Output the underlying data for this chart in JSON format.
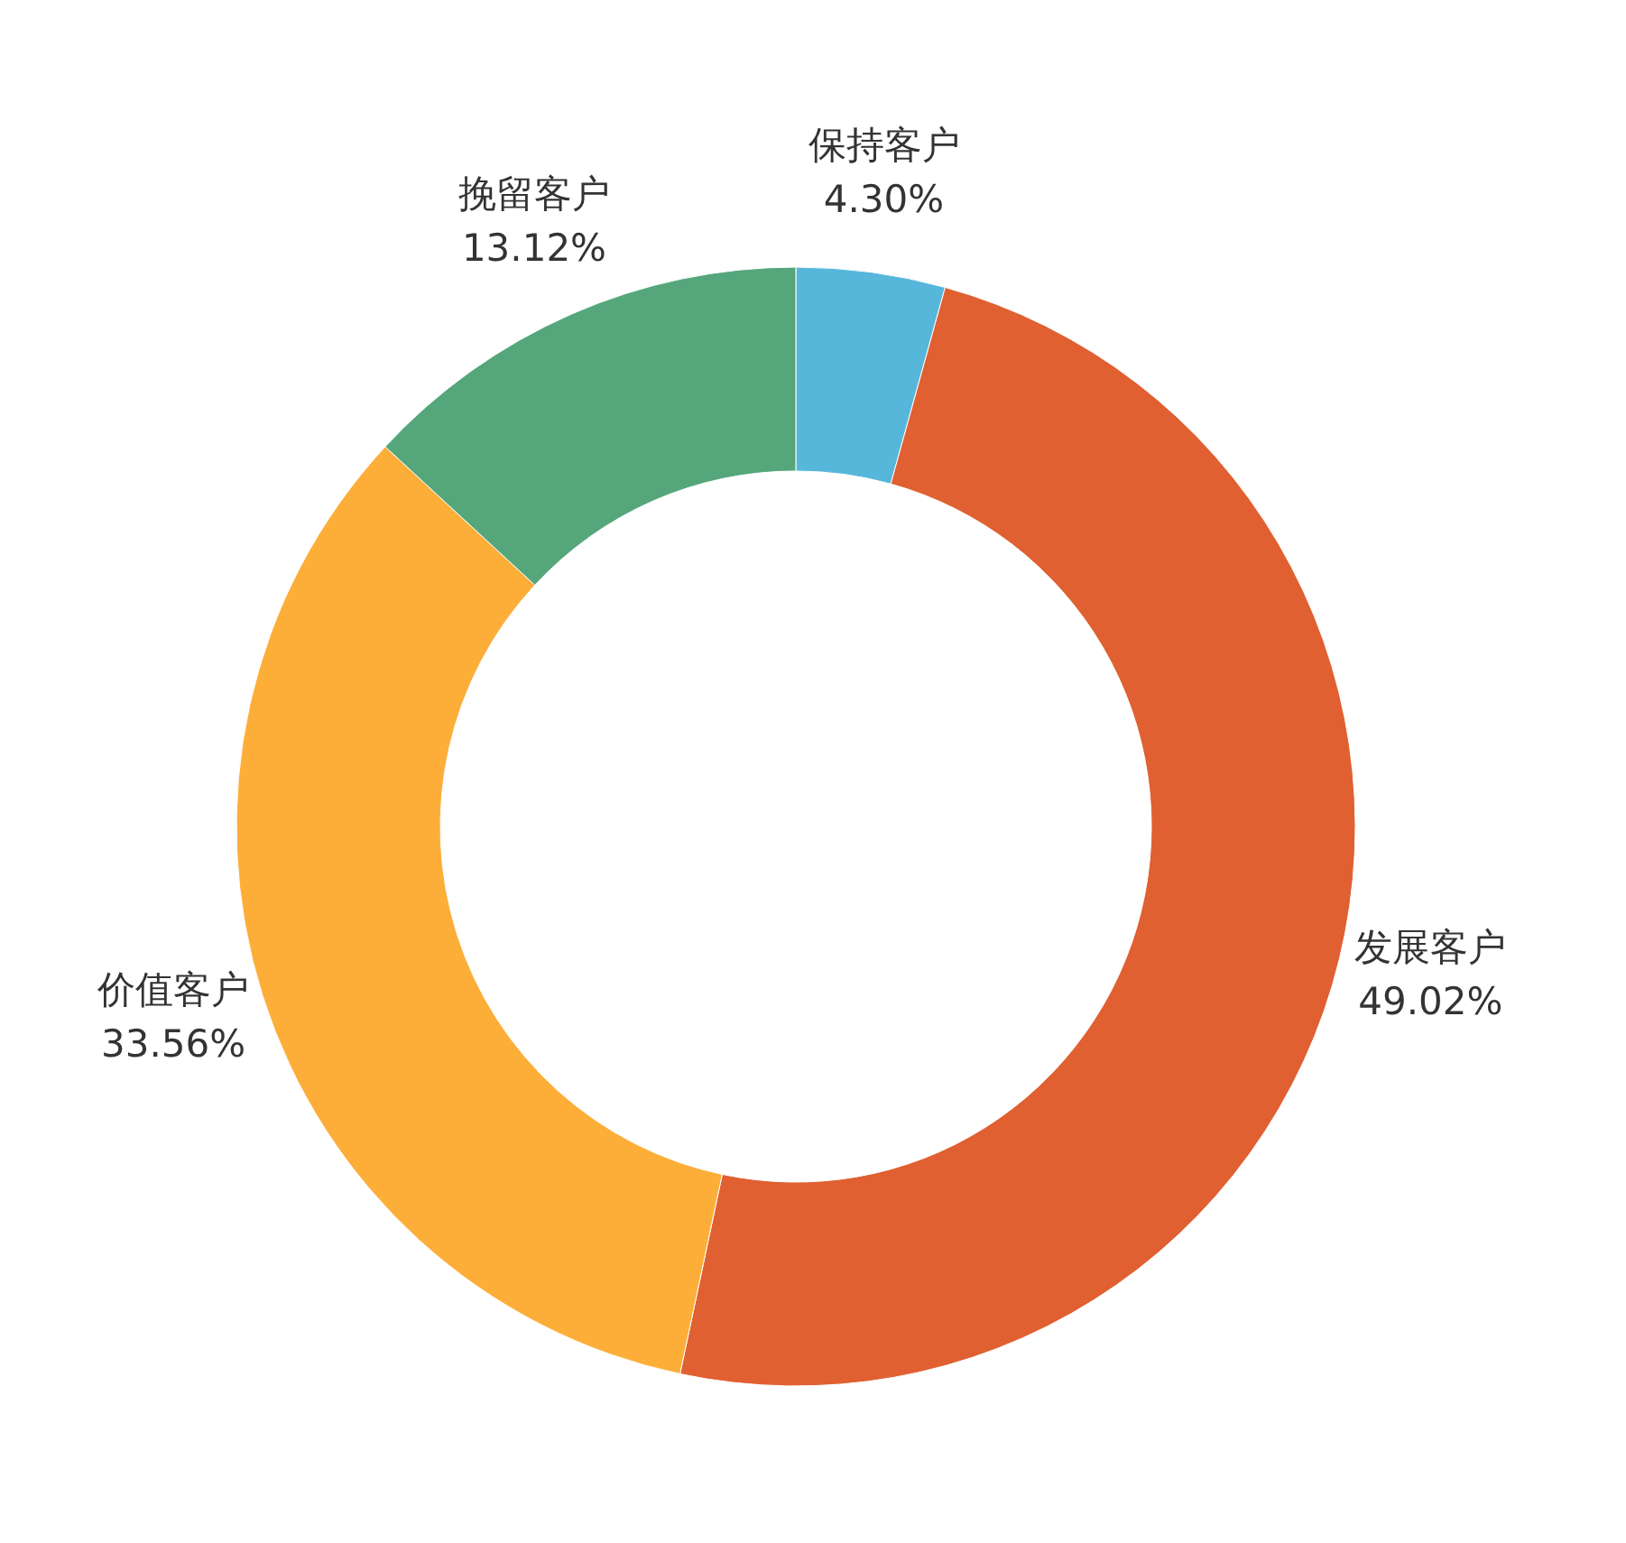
{
  "chart_data": {
    "type": "donut",
    "categories": [
      "保持客户",
      "发展客户",
      "价值客户",
      "挽留客户"
    ],
    "values": [
      4.3,
      49.02,
      33.56,
      13.12
    ],
    "value_labels": [
      "4.30%",
      "49.02%",
      "33.56%",
      "13.12%"
    ],
    "colors": [
      "#56b7db",
      "#e06031",
      "#fdae38",
      "#55a77b"
    ],
    "legend": false
  }
}
